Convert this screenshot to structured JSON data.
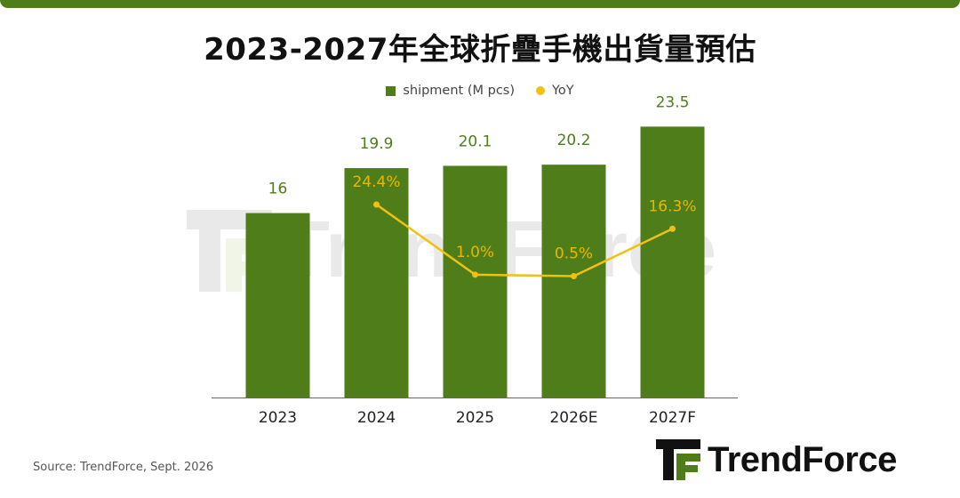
{
  "title": "2023-2027年全球折疊手機出貨量預估",
  "legend": {
    "bar_label": "shipment (M pcs)",
    "line_label": "YoY"
  },
  "source": "Source: TrendForce, Sept. 2026",
  "brand": "TrendForce",
  "colors": {
    "bar": "#4f7d19",
    "bar_label": "#4f7d19",
    "line": "#f2c00f",
    "line_label": "#e8b800",
    "axis": "#666666"
  },
  "chart_data": {
    "type": "bar",
    "categories": [
      "2023",
      "2024",
      "2025",
      "2026E",
      "2027F"
    ],
    "series": [
      {
        "name": "shipment (M pcs)",
        "type": "bar",
        "values": [
          16,
          19.9,
          20.1,
          20.2,
          23.5
        ],
        "labels": [
          "16",
          "19.9",
          "20.1",
          "20.2",
          "23.5"
        ]
      },
      {
        "name": "YoY",
        "type": "line",
        "values": [
          null,
          24.4,
          1.0,
          0.5,
          16.3
        ],
        "labels": [
          null,
          "24.4%",
          "1.0%",
          "0.5%",
          "16.3%"
        ]
      }
    ],
    "ylim_bar": [
      0,
      26
    ],
    "ylim_yoy": [
      -40,
      60
    ],
    "legend_position": "top-center",
    "grid": false
  }
}
